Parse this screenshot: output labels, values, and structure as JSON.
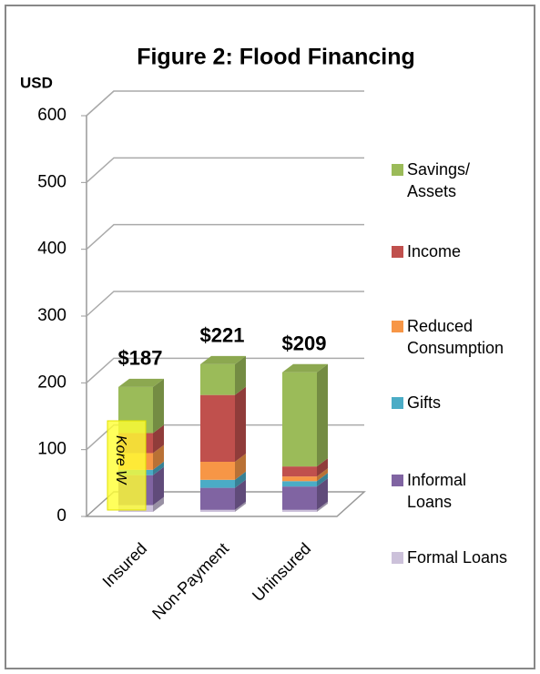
{
  "chart_data": {
    "type": "bar3d_stacked",
    "title": "Figure 2: Flood Financing",
    "y_label": "USD",
    "annotation": "Kore W",
    "categories": [
      "Insured",
      "Non-Payment",
      "Uninsured"
    ],
    "series": [
      {
        "name": "Formal Loans",
        "color": "#ccc1da",
        "values": [
          10,
          3,
          3
        ]
      },
      {
        "name": "Informal Loans",
        "color": "#8064a2",
        "values": [
          45,
          33,
          35
        ]
      },
      {
        "name": "Gifts",
        "color": "#4bacc6",
        "values": [
          8,
          12,
          8
        ]
      },
      {
        "name": "Reduced Consumption",
        "color": "#f79646",
        "values": [
          25,
          27,
          7
        ]
      },
      {
        "name": "Income",
        "color": "#c0504d",
        "values": [
          30,
          100,
          15
        ]
      },
      {
        "name": "Savings/ Assets",
        "color": "#9bbb59",
        "values": [
          69,
          46,
          141
        ]
      }
    ],
    "totals": [
      187,
      221,
      209
    ],
    "value_labels": [
      "$187",
      "$221",
      "$209"
    ],
    "ylim": [
      0,
      600
    ],
    "yticks": [
      0,
      100,
      200,
      300,
      400,
      500,
      600
    ],
    "grid": true
  }
}
